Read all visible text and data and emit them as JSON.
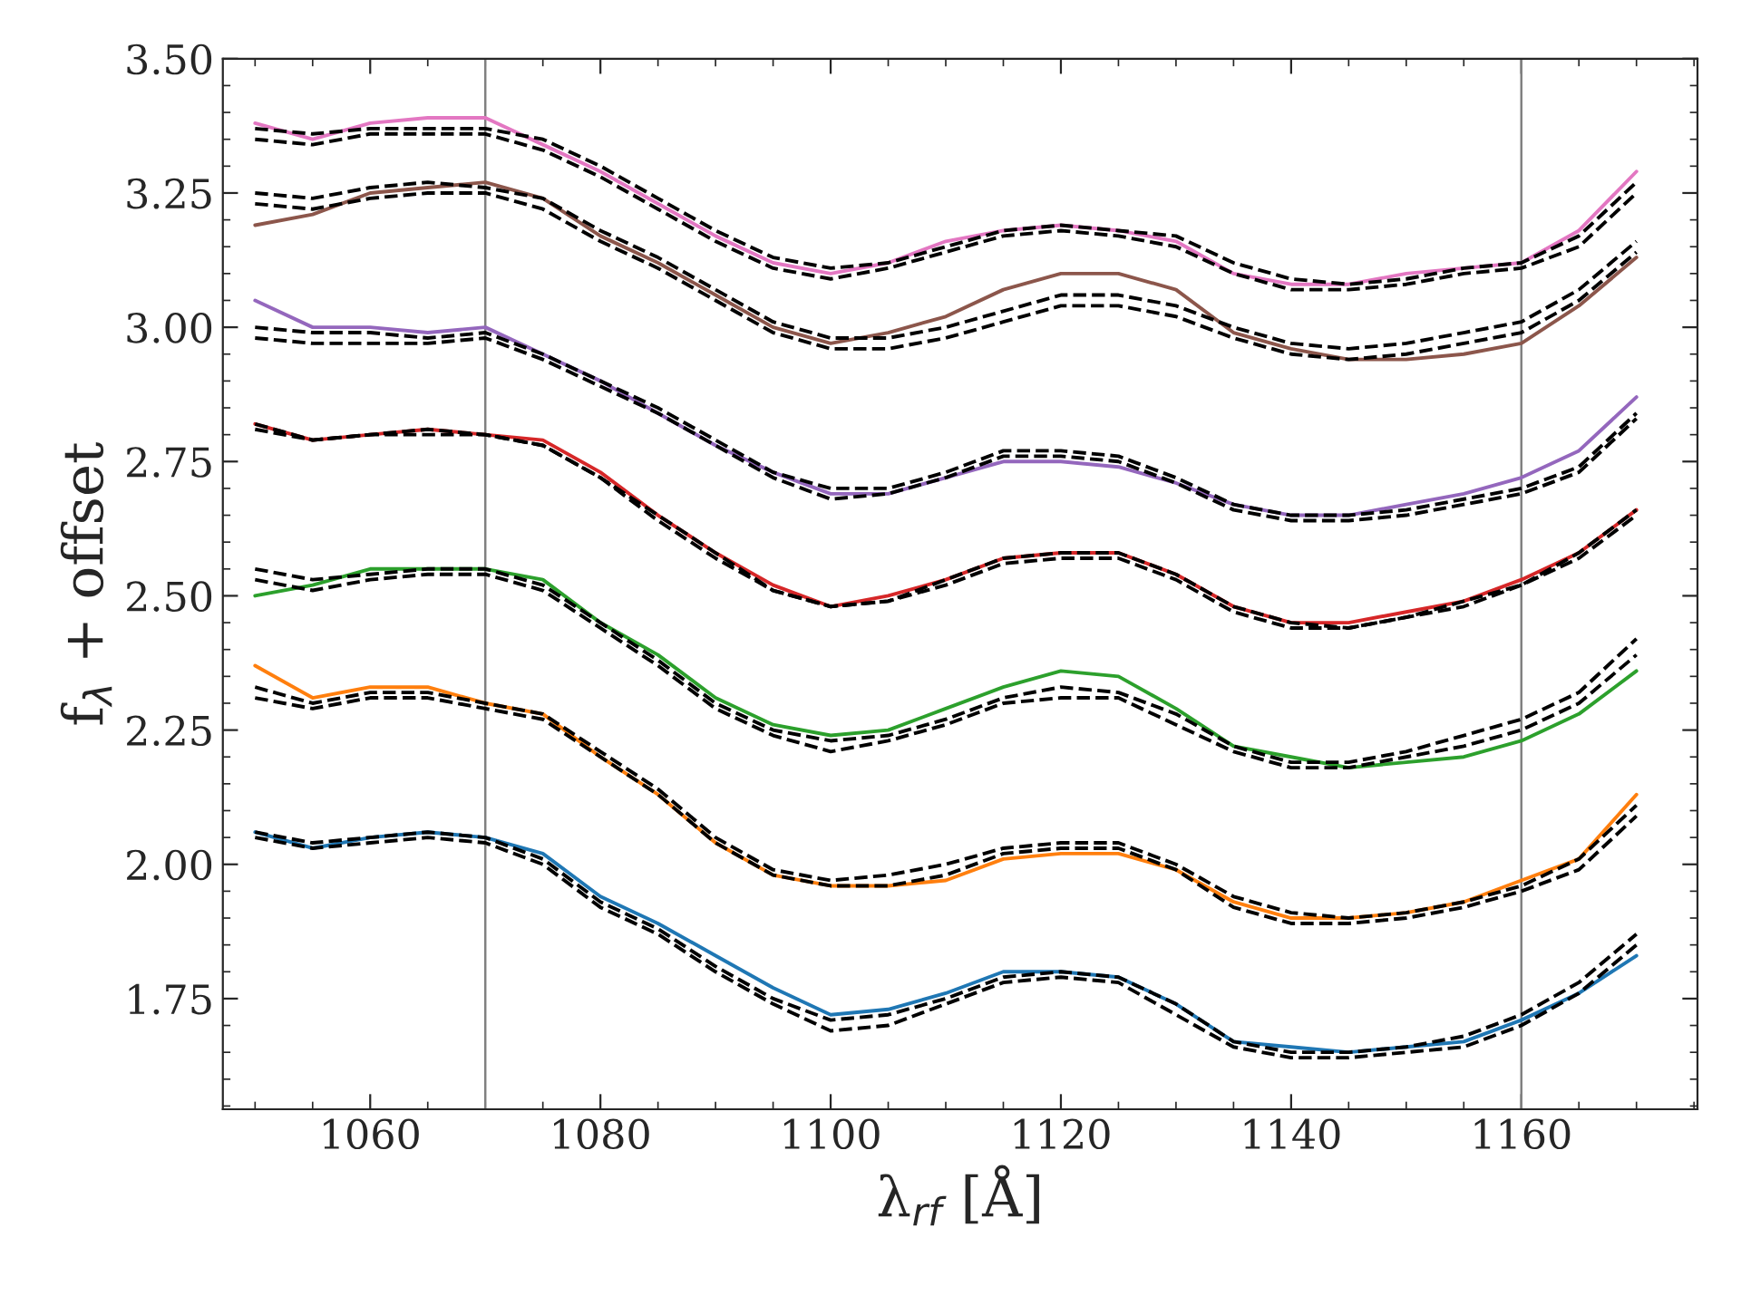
{
  "chart_data": {
    "type": "line",
    "xlabel": "λ$_{rf}$ [Å]",
    "ylabel": "f$_{λ}$ + offset",
    "x": [
      1050,
      1055,
      1060,
      1065,
      1070,
      1075,
      1080,
      1085,
      1090,
      1095,
      1100,
      1105,
      1110,
      1115,
      1120,
      1125,
      1130,
      1135,
      1140,
      1145,
      1150,
      1155,
      1160,
      1165,
      1170
    ],
    "xlim": [
      1047.2,
      1175.3
    ],
    "xticks": [
      1060,
      1080,
      1100,
      1120,
      1140,
      1160
    ],
    "ylim": [
      1.544,
      3.5
    ],
    "yticks": [
      {
        "value": 1.75,
        "label": "1.75"
      },
      {
        "value": 2.0,
        "label": "2.00"
      },
      {
        "value": 2.25,
        "label": "2.25"
      },
      {
        "value": 2.5,
        "label": "2.50"
      },
      {
        "value": 2.75,
        "label": "2.75"
      },
      {
        "value": 3.0,
        "label": "3.00"
      },
      {
        "value": 3.25,
        "label": "3.25"
      },
      {
        "value": 3.5,
        "label": "3.50"
      }
    ],
    "grid": false,
    "legend": false,
    "ref_lines": [
      {
        "axis": "x",
        "value": 1070,
        "color": "#808080"
      },
      {
        "axis": "x",
        "value": 1160,
        "color": "#808080"
      }
    ],
    "series": [
      {
        "color": "#1f77b4",
        "line_style": "solid",
        "values": [
          2.06,
          2.03,
          2.05,
          2.06,
          2.05,
          2.02,
          1.94,
          1.89,
          1.83,
          1.77,
          1.72,
          1.73,
          1.76,
          1.8,
          1.8,
          1.79,
          1.74,
          1.67,
          1.66,
          1.65,
          1.66,
          1.67,
          1.71,
          1.76,
          1.83
        ]
      },
      {
        "color": "#ff7f0e",
        "line_style": "solid",
        "values": [
          2.37,
          2.31,
          2.33,
          2.33,
          2.3,
          2.28,
          2.2,
          2.13,
          2.04,
          1.98,
          1.96,
          1.96,
          1.97,
          2.01,
          2.02,
          2.02,
          1.99,
          1.93,
          1.9,
          1.9,
          1.91,
          1.93,
          1.97,
          2.01,
          2.13
        ]
      },
      {
        "color": "#2ca02c",
        "line_style": "solid",
        "values": [
          2.5,
          2.52,
          2.55,
          2.55,
          2.55,
          2.53,
          2.45,
          2.39,
          2.31,
          2.26,
          2.24,
          2.25,
          2.29,
          2.33,
          2.36,
          2.35,
          2.29,
          2.22,
          2.2,
          2.18,
          2.19,
          2.2,
          2.23,
          2.28,
          2.36
        ]
      },
      {
        "color": "#d62728",
        "line_style": "solid",
        "values": [
          2.82,
          2.79,
          2.8,
          2.81,
          2.8,
          2.79,
          2.73,
          2.65,
          2.58,
          2.52,
          2.48,
          2.5,
          2.53,
          2.57,
          2.58,
          2.58,
          2.54,
          2.48,
          2.45,
          2.45,
          2.47,
          2.49,
          2.53,
          2.58,
          2.66
        ]
      },
      {
        "color": "#9467bd",
        "line_style": "solid",
        "values": [
          3.05,
          3.0,
          3.0,
          2.99,
          3.0,
          2.95,
          2.9,
          2.84,
          2.78,
          2.73,
          2.69,
          2.69,
          2.72,
          2.75,
          2.75,
          2.74,
          2.71,
          2.67,
          2.65,
          2.65,
          2.67,
          2.69,
          2.72,
          2.77,
          2.87
        ]
      },
      {
        "color": "#8c564b",
        "line_style": "solid",
        "values": [
          3.19,
          3.21,
          3.25,
          3.26,
          3.27,
          3.24,
          3.17,
          3.12,
          3.06,
          3.0,
          2.97,
          2.99,
          3.02,
          3.07,
          3.1,
          3.1,
          3.07,
          2.99,
          2.96,
          2.94,
          2.94,
          2.95,
          2.97,
          3.04,
          3.13
        ]
      },
      {
        "color": "#e377c2",
        "line_style": "solid",
        "values": [
          3.38,
          3.35,
          3.38,
          3.39,
          3.39,
          3.34,
          3.29,
          3.23,
          3.17,
          3.12,
          3.1,
          3.12,
          3.16,
          3.18,
          3.19,
          3.18,
          3.16,
          3.1,
          3.08,
          3.08,
          3.1,
          3.11,
          3.12,
          3.18,
          3.29
        ]
      },
      {
        "color": "#000000",
        "line_style": "dashed",
        "values": [
          2.06,
          2.04,
          2.05,
          2.06,
          2.05,
          2.01,
          1.93,
          1.88,
          1.81,
          1.75,
          1.71,
          1.72,
          1.75,
          1.79,
          1.8,
          1.79,
          1.74,
          1.67,
          1.65,
          1.65,
          1.66,
          1.68,
          1.72,
          1.78,
          1.87
        ]
      },
      {
        "color": "#000000",
        "line_style": "dashed",
        "values": [
          2.05,
          2.03,
          2.04,
          2.05,
          2.04,
          2.0,
          1.92,
          1.87,
          1.8,
          1.74,
          1.69,
          1.7,
          1.74,
          1.78,
          1.79,
          1.78,
          1.72,
          1.66,
          1.64,
          1.64,
          1.65,
          1.66,
          1.7,
          1.76,
          1.85
        ]
      },
      {
        "color": "#000000",
        "line_style": "dashed",
        "values": [
          2.33,
          2.3,
          2.32,
          2.32,
          2.3,
          2.28,
          2.21,
          2.14,
          2.05,
          1.99,
          1.97,
          1.98,
          2.0,
          2.03,
          2.04,
          2.04,
          2.0,
          1.94,
          1.91,
          1.9,
          1.91,
          1.93,
          1.96,
          2.01,
          2.11
        ]
      },
      {
        "color": "#000000",
        "line_style": "dashed",
        "values": [
          2.31,
          2.29,
          2.31,
          2.31,
          2.29,
          2.27,
          2.2,
          2.13,
          2.04,
          1.98,
          1.96,
          1.96,
          1.98,
          2.02,
          2.03,
          2.03,
          1.99,
          1.92,
          1.89,
          1.89,
          1.9,
          1.92,
          1.95,
          1.99,
          2.09
        ]
      },
      {
        "color": "#000000",
        "line_style": "dashed",
        "values": [
          2.55,
          2.53,
          2.54,
          2.55,
          2.55,
          2.52,
          2.45,
          2.38,
          2.3,
          2.25,
          2.23,
          2.24,
          2.27,
          2.31,
          2.33,
          2.32,
          2.28,
          2.22,
          2.19,
          2.19,
          2.21,
          2.24,
          2.27,
          2.32,
          2.42
        ]
      },
      {
        "color": "#000000",
        "line_style": "dashed",
        "values": [
          2.53,
          2.51,
          2.53,
          2.54,
          2.54,
          2.51,
          2.44,
          2.37,
          2.29,
          2.24,
          2.21,
          2.23,
          2.26,
          2.3,
          2.31,
          2.31,
          2.26,
          2.21,
          2.18,
          2.18,
          2.2,
          2.22,
          2.25,
          2.3,
          2.39
        ]
      },
      {
        "color": "#000000",
        "line_style": "dashed",
        "values": [
          2.82,
          2.79,
          2.8,
          2.81,
          2.8,
          2.78,
          2.72,
          2.65,
          2.58,
          2.51,
          2.48,
          2.49,
          2.53,
          2.57,
          2.58,
          2.58,
          2.54,
          2.48,
          2.45,
          2.44,
          2.46,
          2.49,
          2.52,
          2.58,
          2.66
        ]
      },
      {
        "color": "#000000",
        "line_style": "dashed",
        "values": [
          2.81,
          2.79,
          2.8,
          2.8,
          2.8,
          2.78,
          2.72,
          2.64,
          2.57,
          2.51,
          2.48,
          2.49,
          2.52,
          2.56,
          2.57,
          2.57,
          2.53,
          2.47,
          2.44,
          2.44,
          2.46,
          2.48,
          2.52,
          2.57,
          2.65
        ]
      },
      {
        "color": "#000000",
        "line_style": "dashed",
        "values": [
          3.0,
          2.99,
          2.99,
          2.98,
          2.99,
          2.95,
          2.9,
          2.85,
          2.79,
          2.73,
          2.7,
          2.7,
          2.73,
          2.77,
          2.77,
          2.76,
          2.72,
          2.67,
          2.65,
          2.65,
          2.66,
          2.68,
          2.7,
          2.74,
          2.84
        ]
      },
      {
        "color": "#000000",
        "line_style": "dashed",
        "values": [
          2.98,
          2.97,
          2.97,
          2.97,
          2.98,
          2.94,
          2.89,
          2.84,
          2.78,
          2.72,
          2.68,
          2.69,
          2.72,
          2.76,
          2.76,
          2.75,
          2.71,
          2.66,
          2.64,
          2.64,
          2.65,
          2.67,
          2.69,
          2.73,
          2.83
        ]
      },
      {
        "color": "#000000",
        "line_style": "dashed",
        "values": [
          3.25,
          3.24,
          3.26,
          3.27,
          3.26,
          3.24,
          3.18,
          3.13,
          3.07,
          3.01,
          2.98,
          2.98,
          3.0,
          3.03,
          3.06,
          3.06,
          3.04,
          3.0,
          2.97,
          2.96,
          2.97,
          2.99,
          3.01,
          3.07,
          3.16
        ]
      },
      {
        "color": "#000000",
        "line_style": "dashed",
        "values": [
          3.23,
          3.22,
          3.24,
          3.25,
          3.25,
          3.22,
          3.16,
          3.11,
          3.05,
          2.99,
          2.96,
          2.96,
          2.98,
          3.01,
          3.04,
          3.04,
          3.02,
          2.98,
          2.95,
          2.94,
          2.95,
          2.97,
          2.99,
          3.05,
          3.14
        ]
      },
      {
        "color": "#000000",
        "line_style": "dashed",
        "values": [
          3.37,
          3.36,
          3.37,
          3.37,
          3.37,
          3.35,
          3.3,
          3.24,
          3.18,
          3.13,
          3.11,
          3.12,
          3.15,
          3.18,
          3.19,
          3.18,
          3.17,
          3.12,
          3.09,
          3.08,
          3.09,
          3.11,
          3.12,
          3.17,
          3.27
        ]
      },
      {
        "color": "#000000",
        "line_style": "dashed",
        "values": [
          3.35,
          3.34,
          3.36,
          3.36,
          3.36,
          3.33,
          3.28,
          3.22,
          3.16,
          3.11,
          3.09,
          3.11,
          3.14,
          3.17,
          3.18,
          3.17,
          3.15,
          3.1,
          3.07,
          3.07,
          3.08,
          3.1,
          3.11,
          3.15,
          3.25
        ]
      }
    ]
  }
}
